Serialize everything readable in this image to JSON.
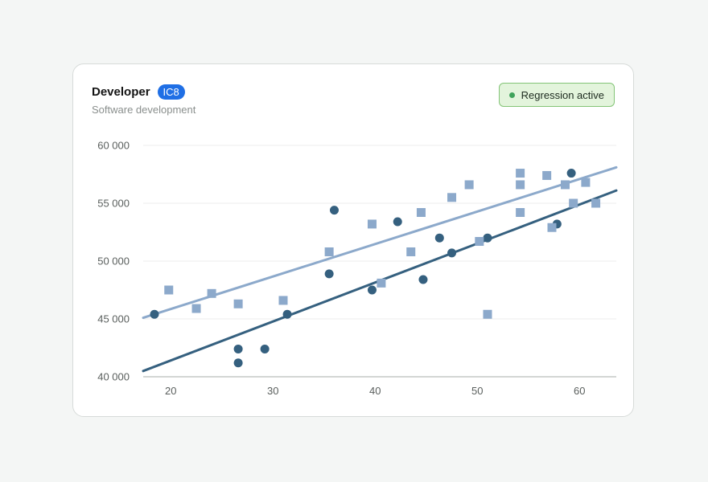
{
  "card": {
    "title": "Developer",
    "badge": "IC8",
    "subtitle": "Software development",
    "status": "Regression active"
  },
  "colors": {
    "dark": "#35607f",
    "light": "#8ca9cb",
    "accent": "#1f6fe5",
    "status_dot": "#3fa35b"
  },
  "chart_data": {
    "type": "scatter",
    "title": "",
    "xlabel": "",
    "ylabel": "",
    "xlim": [
      17.3,
      63.6
    ],
    "ylim": [
      40000,
      60000
    ],
    "x_ticks": [
      20,
      30,
      40,
      50,
      60
    ],
    "y_ticks": [
      40000,
      45000,
      50000,
      55000,
      60000
    ],
    "x_tick_labels": [
      "20",
      "30",
      "40",
      "50",
      "60"
    ],
    "y_tick_labels": [
      "40 000",
      "45 000",
      "50 000",
      "55 000",
      "60 000"
    ],
    "grid": "horizontal",
    "series": [
      {
        "marker": "circle",
        "color": "#35607f",
        "points": [
          [
            18.4,
            45400
          ],
          [
            26.6,
            42400
          ],
          [
            26.6,
            41200
          ],
          [
            29.2,
            42400
          ],
          [
            31.4,
            45400
          ],
          [
            35.5,
            48900
          ],
          [
            36.0,
            54400
          ],
          [
            39.7,
            47500
          ],
          [
            42.2,
            53400
          ],
          [
            44.7,
            48400
          ],
          [
            46.3,
            52000
          ],
          [
            47.5,
            50700
          ],
          [
            51.0,
            52000
          ],
          [
            57.8,
            53200
          ],
          [
            59.2,
            57600
          ]
        ],
        "trend": {
          "x": [
            17.3,
            63.6
          ],
          "y": [
            40500,
            56100
          ]
        }
      },
      {
        "marker": "square",
        "color": "#8ca9cb",
        "points": [
          [
            19.8,
            47500
          ],
          [
            22.5,
            45900
          ],
          [
            24.0,
            47200
          ],
          [
            26.6,
            46300
          ],
          [
            31.0,
            46600
          ],
          [
            35.5,
            50800
          ],
          [
            39.7,
            53200
          ],
          [
            40.6,
            48100
          ],
          [
            43.5,
            50800
          ],
          [
            44.5,
            54200
          ],
          [
            47.5,
            55500
          ],
          [
            49.2,
            56600
          ],
          [
            50.2,
            51700
          ],
          [
            51.0,
            45400
          ],
          [
            54.2,
            57600
          ],
          [
            54.2,
            56600
          ],
          [
            54.2,
            54200
          ],
          [
            56.8,
            57400
          ],
          [
            57.3,
            52900
          ],
          [
            58.6,
            56600
          ],
          [
            59.4,
            55000
          ],
          [
            60.6,
            56800
          ],
          [
            61.6,
            55000
          ]
        ],
        "trend": {
          "x": [
            17.3,
            63.6
          ],
          "y": [
            45100,
            58100
          ]
        }
      }
    ]
  }
}
